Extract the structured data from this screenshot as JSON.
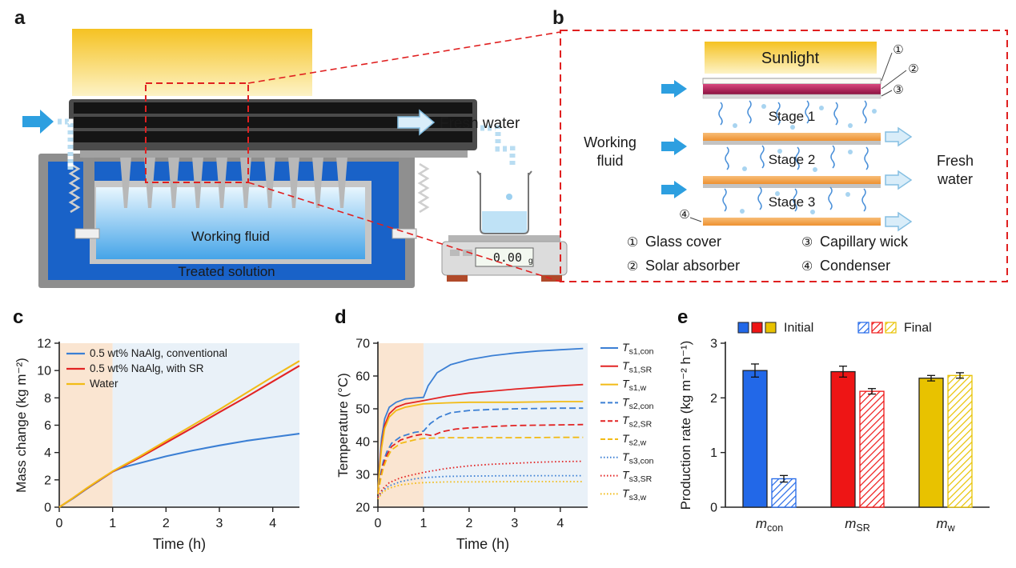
{
  "panels": {
    "a": {
      "label": "a",
      "fresh_water": "Fresh water",
      "working_fluid": "Working fluid",
      "treated_solution": "Treated solution",
      "scale_reading": "0.00",
      "scale_unit": "g"
    },
    "b": {
      "label": "b",
      "sunlight": "Sunlight",
      "working_fluid_lines": [
        "Working",
        "fluid"
      ],
      "fresh_water_lines": [
        "Fresh",
        "water"
      ],
      "stages": [
        "Stage 1",
        "Stage 2",
        "Stage 3"
      ],
      "callouts": [
        "①",
        "②",
        "③",
        "④"
      ],
      "legend": [
        {
          "num": "①",
          "label": "Glass cover"
        },
        {
          "num": "②",
          "label": "Solar absorber"
        },
        {
          "num": "③",
          "label": "Capillary wick"
        },
        {
          "num": "④",
          "label": "Condenser"
        }
      ]
    },
    "c": {
      "label": "c"
    },
    "d": {
      "label": "d"
    },
    "e": {
      "label": "e"
    }
  },
  "chart_data": [
    {
      "id": "c",
      "type": "line",
      "title": "",
      "xlabel": "Time (h)",
      "ylabel": "Mass change (kg m⁻²)",
      "xlim": [
        0,
        4.5
      ],
      "ylim": [
        0,
        12
      ],
      "xticks": [
        0,
        1,
        2,
        3,
        4
      ],
      "yticks": [
        0,
        2,
        4,
        6,
        8,
        10,
        12
      ],
      "legend_position": "inside-top-left",
      "bg_regions": [
        {
          "x0": 0,
          "x1": 1,
          "color": "#fae5d1"
        },
        {
          "x0": 1,
          "x1": 4.5,
          "color": "#e9f1f8"
        }
      ],
      "series": [
        {
          "name": "0.5 wt% NaAlg, conventional",
          "color": "#3b7fd4",
          "style": "solid",
          "points": [
            [
              0,
              0
            ],
            [
              0.25,
              0.62
            ],
            [
              0.5,
              1.3
            ],
            [
              0.75,
              1.95
            ],
            [
              1,
              2.6
            ],
            [
              1.15,
              2.85
            ],
            [
              1.3,
              3.02
            ],
            [
              1.5,
              3.22
            ],
            [
              2,
              3.72
            ],
            [
              2.5,
              4.15
            ],
            [
              3,
              4.52
            ],
            [
              3.5,
              4.85
            ],
            [
              4,
              5.12
            ],
            [
              4.5,
              5.38
            ]
          ]
        },
        {
          "name": "0.5 wt% NaAlg, with SR",
          "color": "#e22424",
          "style": "solid",
          "points": [
            [
              0,
              0
            ],
            [
              0.25,
              0.65
            ],
            [
              0.5,
              1.33
            ],
            [
              0.75,
              1.98
            ],
            [
              1,
              2.6
            ],
            [
              1.5,
              3.62
            ],
            [
              2,
              4.72
            ],
            [
              2.5,
              5.82
            ],
            [
              3,
              6.95
            ],
            [
              3.5,
              8.05
            ],
            [
              4,
              9.2
            ],
            [
              4.5,
              10.35
            ]
          ]
        },
        {
          "name": "Water",
          "color": "#f2bb16",
          "style": "solid",
          "points": [
            [
              0,
              0
            ],
            [
              0.25,
              0.66
            ],
            [
              0.5,
              1.35
            ],
            [
              0.75,
              2.0
            ],
            [
              1,
              2.63
            ],
            [
              1.5,
              3.7
            ],
            [
              2,
              4.85
            ],
            [
              2.5,
              6.0
            ],
            [
              3,
              7.15
            ],
            [
              3.5,
              8.35
            ],
            [
              4,
              9.55
            ],
            [
              4.5,
              10.7
            ]
          ]
        }
      ]
    },
    {
      "id": "d",
      "type": "line",
      "title": "",
      "xlabel": "Time (h)",
      "ylabel": "Temperature (°C)",
      "xlim": [
        0,
        4.6
      ],
      "ylim": [
        20,
        70
      ],
      "xticks": [
        0,
        1,
        2,
        3,
        4
      ],
      "yticks": [
        20,
        30,
        40,
        50,
        60,
        70
      ],
      "legend_position": "right",
      "bg_regions": [
        {
          "x0": 0,
          "x1": 1,
          "color": "#fae5d1"
        },
        {
          "x0": 1,
          "x1": 4.6,
          "color": "#e9f1f8"
        }
      ],
      "series": [
        {
          "label": {
            "main": "T",
            "sub": "s1,con"
          },
          "color": "#3b7fd4",
          "style": "solid",
          "points": [
            [
              0,
              25
            ],
            [
              0.04,
              34
            ],
            [
              0.08,
              41
            ],
            [
              0.15,
              47
            ],
            [
              0.25,
              50.5
            ],
            [
              0.4,
              52
            ],
            [
              0.6,
              53
            ],
            [
              0.8,
              53.3
            ],
            [
              1.0,
              53.5
            ],
            [
              1.1,
              57
            ],
            [
              1.3,
              61
            ],
            [
              1.6,
              63.5
            ],
            [
              2,
              65
            ],
            [
              2.5,
              66.2
            ],
            [
              3,
              67
            ],
            [
              3.5,
              67.6
            ],
            [
              4,
              68
            ],
            [
              4.5,
              68.4
            ]
          ]
        },
        {
          "label": {
            "main": "T",
            "sub": "s1,SR"
          },
          "color": "#e22424",
          "style": "solid",
          "points": [
            [
              0,
              25
            ],
            [
              0.04,
              33
            ],
            [
              0.08,
              39
            ],
            [
              0.15,
              45
            ],
            [
              0.25,
              48.5
            ],
            [
              0.4,
              50.5
            ],
            [
              0.6,
              51.5
            ],
            [
              1.0,
              52.5
            ],
            [
              1.5,
              53.8
            ],
            [
              2,
              54.8
            ],
            [
              2.5,
              55.4
            ],
            [
              3,
              56
            ],
            [
              3.5,
              56.5
            ],
            [
              4,
              57
            ],
            [
              4.5,
              57.4
            ]
          ]
        },
        {
          "label": {
            "main": "T",
            "sub": "s1,w"
          },
          "color": "#f2bb16",
          "style": "solid",
          "points": [
            [
              0,
              25
            ],
            [
              0.04,
              32
            ],
            [
              0.08,
              38
            ],
            [
              0.15,
              44
            ],
            [
              0.25,
              47.5
            ],
            [
              0.4,
              49.5
            ],
            [
              0.6,
              50.5
            ],
            [
              1.0,
              51.5
            ],
            [
              1.5,
              51.8
            ],
            [
              2,
              52
            ],
            [
              3,
              52
            ],
            [
              4,
              52.2
            ],
            [
              4.5,
              52.2
            ]
          ]
        },
        {
          "label": {
            "main": "T",
            "sub": "s2,con"
          },
          "color": "#3b7fd4",
          "style": "dashed",
          "points": [
            [
              0,
              24
            ],
            [
              0.06,
              30
            ],
            [
              0.12,
              34
            ],
            [
              0.2,
              37
            ],
            [
              0.3,
              39.5
            ],
            [
              0.5,
              41.5
            ],
            [
              0.8,
              42.8
            ],
            [
              1.0,
              43.2
            ],
            [
              1.15,
              45.5
            ],
            [
              1.35,
              47.5
            ],
            [
              1.6,
              48.8
            ],
            [
              2,
              49.5
            ],
            [
              2.5,
              49.8
            ],
            [
              3,
              50
            ],
            [
              4,
              50.2
            ],
            [
              4.5,
              50.2
            ]
          ]
        },
        {
          "label": {
            "main": "T",
            "sub": "s2,SR"
          },
          "color": "#e22424",
          "style": "dashed",
          "points": [
            [
              0,
              24
            ],
            [
              0.06,
              29
            ],
            [
              0.12,
              33
            ],
            [
              0.2,
              36
            ],
            [
              0.3,
              38.5
            ],
            [
              0.5,
              40.5
            ],
            [
              0.8,
              41.8
            ],
            [
              1.0,
              42.3
            ],
            [
              1.2,
              41.8
            ],
            [
              1.4,
              43
            ],
            [
              1.7,
              43.8
            ],
            [
              2,
              44.2
            ],
            [
              2.5,
              44.6
            ],
            [
              3,
              44.9
            ],
            [
              4,
              45.1
            ],
            [
              4.5,
              45.2
            ]
          ]
        },
        {
          "label": {
            "main": "T",
            "sub": "s2,w"
          },
          "color": "#f2bb16",
          "style": "dashed",
          "points": [
            [
              0,
              24
            ],
            [
              0.06,
              28.5
            ],
            [
              0.12,
              32
            ],
            [
              0.2,
              35
            ],
            [
              0.3,
              37.5
            ],
            [
              0.5,
              39.5
            ],
            [
              0.8,
              40.5
            ],
            [
              1.0,
              41
            ],
            [
              1.5,
              41.2
            ],
            [
              2,
              41.2
            ],
            [
              3,
              41.2
            ],
            [
              4,
              41.3
            ],
            [
              4.5,
              41.3
            ]
          ]
        },
        {
          "label": {
            "main": "T",
            "sub": "s3,con"
          },
          "color": "#3b7fd4",
          "style": "dotted",
          "points": [
            [
              0,
              23
            ],
            [
              0.1,
              25
            ],
            [
              0.25,
              26.5
            ],
            [
              0.5,
              27.8
            ],
            [
              0.8,
              28.6
            ],
            [
              1.0,
              29
            ],
            [
              1.5,
              29.4
            ],
            [
              2,
              29.5
            ],
            [
              3,
              29.6
            ],
            [
              4,
              29.6
            ],
            [
              4.5,
              29.6
            ]
          ]
        },
        {
          "label": {
            "main": "T",
            "sub": "s3,SR"
          },
          "color": "#e22424",
          "style": "dotted",
          "points": [
            [
              0,
              23
            ],
            [
              0.1,
              25.5
            ],
            [
              0.25,
              27.5
            ],
            [
              0.5,
              29
            ],
            [
              0.8,
              30
            ],
            [
              1.0,
              30.6
            ],
            [
              1.5,
              31.8
            ],
            [
              2,
              32.6
            ],
            [
              2.5,
              33.1
            ],
            [
              3,
              33.4
            ],
            [
              3.5,
              33.7
            ],
            [
              4,
              33.9
            ],
            [
              4.5,
              34
            ]
          ]
        },
        {
          "label": {
            "main": "T",
            "sub": "s3,w"
          },
          "color": "#f2bb16",
          "style": "dotted",
          "points": [
            [
              0,
              22.5
            ],
            [
              0.1,
              24.5
            ],
            [
              0.25,
              25.8
            ],
            [
              0.5,
              26.8
            ],
            [
              0.8,
              27.3
            ],
            [
              1.0,
              27.5
            ],
            [
              1.5,
              27.7
            ],
            [
              2,
              27.7
            ],
            [
              3,
              27.8
            ],
            [
              4,
              27.8
            ],
            [
              4.5,
              27.8
            ]
          ]
        }
      ]
    },
    {
      "id": "e",
      "type": "bar",
      "title": "",
      "xlabel": "",
      "ylabel": "Production rate (kg m⁻² h⁻¹)",
      "ylim": [
        0,
        3
      ],
      "yticks": [
        0,
        1,
        2,
        3
      ],
      "categories": [
        {
          "main": "m",
          "sub": "con"
        },
        {
          "main": "m",
          "sub": "SR"
        },
        {
          "main": "m",
          "sub": "w"
        }
      ],
      "colors": [
        "#2268e8",
        "#ee1515",
        "#e8c200"
      ],
      "legend": [
        "Initial",
        "Final"
      ],
      "series": [
        {
          "name": "Initial",
          "fill": "solid",
          "values": [
            2.5,
            2.48,
            2.36
          ],
          "errors": [
            0.12,
            0.1,
            0.05
          ]
        },
        {
          "name": "Final",
          "fill": "hatched",
          "values": [
            0.52,
            2.12,
            2.41
          ],
          "errors": [
            0.06,
            0.05,
            0.05
          ]
        }
      ]
    }
  ]
}
